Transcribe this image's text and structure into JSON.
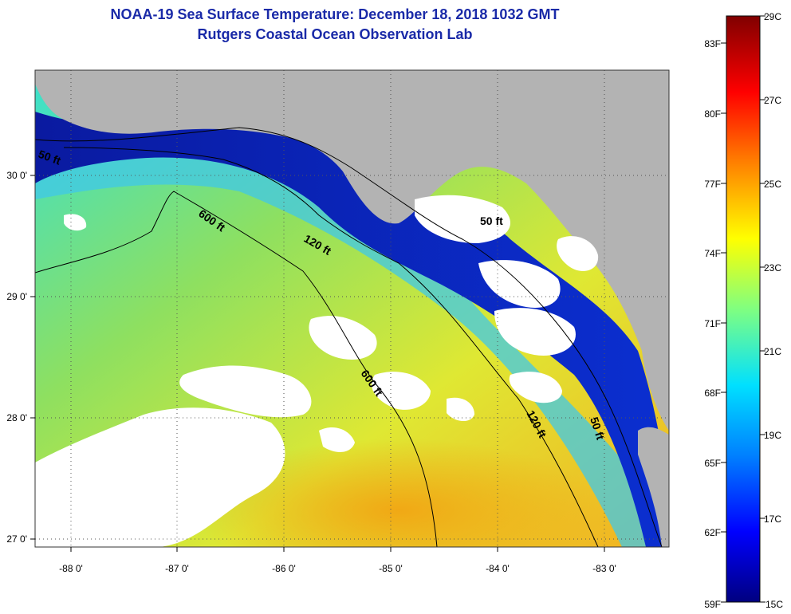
{
  "title": {
    "line1": "NOAA-19 Sea Surface Temperature:  December 18, 2018 1032 GMT",
    "line2": "Rutgers Coastal Ocean Observation Lab"
  },
  "axes": {
    "x_ticks": [
      "-88 0'",
      "-87 0'",
      "-86 0'",
      "-85 0'",
      "-84 0'",
      "-83 0'"
    ],
    "y_ticks": [
      "30 0'",
      "29 0'",
      "28 0'",
      "27 0'"
    ]
  },
  "contours": [
    "50 ft",
    "600 ft",
    "120 ft",
    "50 ft",
    "600 ft",
    "120 ft",
    "50 ft"
  ],
  "colorbar": {
    "fahrenheit": [
      "83F",
      "80F",
      "77F",
      "74F",
      "71F",
      "68F",
      "65F",
      "62F",
      "59F"
    ],
    "celsius": [
      "29C",
      "27C",
      "25C",
      "23C",
      "21C",
      "19C",
      "17C",
      "15C"
    ]
  },
  "colors": {
    "title": "#1a2aa8",
    "land": "#b3b3b3",
    "cloud": "#ffffff"
  }
}
